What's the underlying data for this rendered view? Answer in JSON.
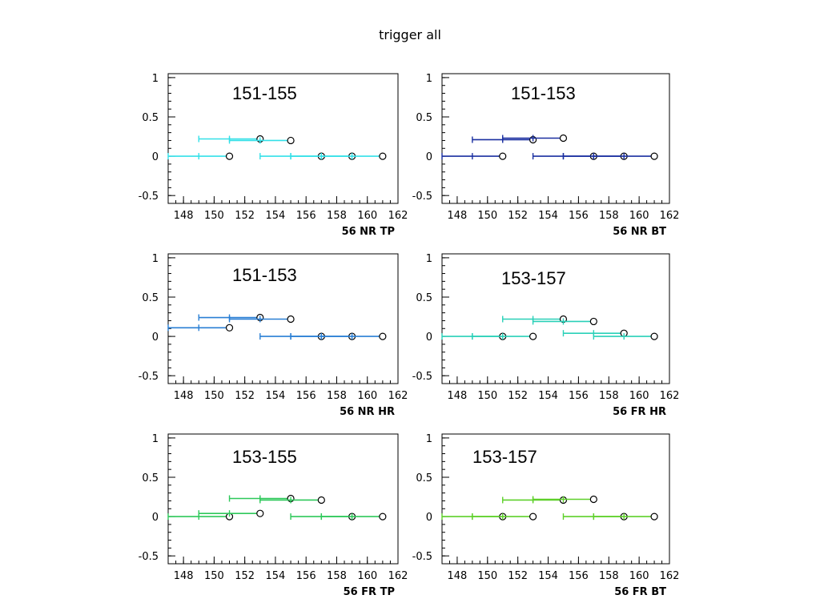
{
  "title": "trigger all",
  "chart_data": [
    {
      "type": "scatter",
      "annotation": "151-155",
      "xlabel": "56 NR TP",
      "color": "#33e0e8",
      "xlim": [
        147,
        162
      ],
      "ylim": [
        -0.6,
        1.05
      ],
      "xticks": [
        148,
        150,
        152,
        154,
        156,
        158,
        160,
        162
      ],
      "yticks": [
        1,
        0.5,
        0,
        -0.5
      ],
      "points": [
        {
          "x": 151,
          "y": 0.0,
          "xlo": 147,
          "xhi": 151
        },
        {
          "x": 153,
          "y": 0.22,
          "xlo": 149,
          "xhi": 153
        },
        {
          "x": 155,
          "y": 0.2,
          "xlo": 151,
          "xhi": 155
        },
        {
          "x": 157,
          "y": 0.0,
          "xlo": 153,
          "xhi": 157
        },
        {
          "x": 159,
          "y": 0.0,
          "xlo": 155,
          "xhi": 159
        },
        {
          "x": 161,
          "y": 0.0,
          "xlo": 157,
          "xhi": 161
        }
      ]
    },
    {
      "type": "scatter",
      "annotation": "151-153",
      "xlabel": "56 NR BT",
      "color": "#1a2fa0",
      "xlim": [
        147,
        162
      ],
      "ylim": [
        -0.6,
        1.05
      ],
      "xticks": [
        148,
        150,
        152,
        154,
        156,
        158,
        160,
        162
      ],
      "yticks": [
        1,
        0.5,
        0,
        -0.5
      ],
      "points": [
        {
          "x": 151,
          "y": 0.0,
          "xlo": 147,
          "xhi": 151
        },
        {
          "x": 153,
          "y": 0.21,
          "xlo": 149,
          "xhi": 153
        },
        {
          "x": 155,
          "y": 0.23,
          "xlo": 151,
          "xhi": 155
        },
        {
          "x": 157,
          "y": 0.0,
          "xlo": 153,
          "xhi": 157
        },
        {
          "x": 159,
          "y": 0.0,
          "xlo": 155,
          "xhi": 159
        },
        {
          "x": 161,
          "y": 0.0,
          "xlo": 157,
          "xhi": 161
        }
      ]
    },
    {
      "type": "scatter",
      "annotation": "151-153",
      "xlabel": "56 NR HR",
      "color": "#2a7fd4",
      "xlim": [
        147,
        162
      ],
      "ylim": [
        -0.6,
        1.05
      ],
      "xticks": [
        148,
        150,
        152,
        154,
        156,
        158,
        160,
        162
      ],
      "yticks": [
        1,
        0.5,
        0,
        -0.5
      ],
      "points": [
        {
          "x": 151,
          "y": 0.11,
          "xlo": 147,
          "xhi": 151
        },
        {
          "x": 153,
          "y": 0.24,
          "xlo": 149,
          "xhi": 153
        },
        {
          "x": 155,
          "y": 0.22,
          "xlo": 151,
          "xhi": 155
        },
        {
          "x": 157,
          "y": 0.0,
          "xlo": 153,
          "xhi": 157
        },
        {
          "x": 159,
          "y": 0.0,
          "xlo": 155,
          "xhi": 159
        },
        {
          "x": 161,
          "y": 0.0,
          "xlo": 157,
          "xhi": 161
        }
      ]
    },
    {
      "type": "scatter",
      "annotation": "153-157",
      "xlabel": "56 FR HR",
      "color": "#2ad0b8",
      "xlim": [
        147,
        162
      ],
      "ylim": [
        -0.6,
        1.05
      ],
      "xticks": [
        148,
        150,
        152,
        154,
        156,
        158,
        160,
        162
      ],
      "yticks": [
        1,
        0.5,
        0,
        -0.5
      ],
      "points": [
        {
          "x": 151,
          "y": 0.0,
          "xlo": 147,
          "xhi": 151
        },
        {
          "x": 153,
          "y": 0.0,
          "xlo": 149,
          "xhi": 153
        },
        {
          "x": 155,
          "y": 0.22,
          "xlo": 151,
          "xhi": 155
        },
        {
          "x": 157,
          "y": 0.19,
          "xlo": 153,
          "xhi": 157
        },
        {
          "x": 159,
          "y": 0.04,
          "xlo": 155,
          "xhi": 159
        },
        {
          "x": 161,
          "y": 0.0,
          "xlo": 157,
          "xhi": 161
        }
      ]
    },
    {
      "type": "scatter",
      "annotation": "153-155",
      "xlabel": "56 FR TP",
      "color": "#2ec85a",
      "xlim": [
        147,
        162
      ],
      "ylim": [
        -0.6,
        1.05
      ],
      "xticks": [
        148,
        150,
        152,
        154,
        156,
        158,
        160,
        162
      ],
      "yticks": [
        1,
        0.5,
        0,
        -0.5
      ],
      "points": [
        {
          "x": 151,
          "y": 0.0,
          "xlo": 147,
          "xhi": 151
        },
        {
          "x": 153,
          "y": 0.04,
          "xlo": 149,
          "xhi": 153
        },
        {
          "x": 155,
          "y": 0.23,
          "xlo": 151,
          "xhi": 155
        },
        {
          "x": 157,
          "y": 0.21,
          "xlo": 153,
          "xhi": 157
        },
        {
          "x": 159,
          "y": 0.0,
          "xlo": 155,
          "xhi": 159
        },
        {
          "x": 161,
          "y": 0.0,
          "xlo": 157,
          "xhi": 161
        }
      ]
    },
    {
      "type": "scatter",
      "annotation": "153-157",
      "xlabel": "56 FR BT",
      "color": "#5ed02a",
      "xlim": [
        147,
        162
      ],
      "ylim": [
        -0.6,
        1.05
      ],
      "xticks": [
        148,
        150,
        152,
        154,
        156,
        158,
        160,
        162
      ],
      "yticks": [
        1,
        0.5,
        0,
        -0.5
      ],
      "points": [
        {
          "x": 151,
          "y": 0.0,
          "xlo": 147,
          "xhi": 151
        },
        {
          "x": 153,
          "y": 0.0,
          "xlo": 149,
          "xhi": 153
        },
        {
          "x": 155,
          "y": 0.21,
          "xlo": 151,
          "xhi": 155
        },
        {
          "x": 157,
          "y": 0.22,
          "xlo": 153,
          "xhi": 157
        },
        {
          "x": 159,
          "y": 0.0,
          "xlo": 155,
          "xhi": 159
        },
        {
          "x": 161,
          "y": 0.0,
          "xlo": 157,
          "xhi": 161
        }
      ]
    }
  ]
}
